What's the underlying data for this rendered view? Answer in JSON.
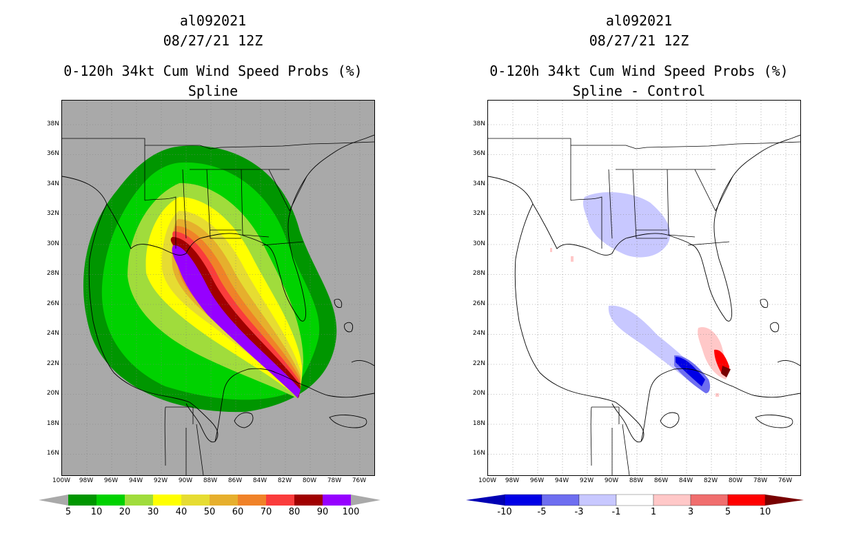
{
  "left_panel": {
    "title_line1": "al092021",
    "title_line2": "08/27/21 12Z",
    "title_line3": "0-120h 34kt Cum Wind Speed Probs (%)",
    "subtitle": "Spline",
    "background_color": "#a9a9a9",
    "colorbar": {
      "colors": [
        "#009600",
        "#00d200",
        "#a0dc3c",
        "#ffff00",
        "#e6dc32",
        "#e6af2d",
        "#f08228",
        "#fa3c3c",
        "#a00000",
        "#9600ff"
      ],
      "labels": [
        "5",
        "10",
        "20",
        "30",
        "40",
        "50",
        "60",
        "70",
        "80",
        "90",
        "100"
      ]
    }
  },
  "right_panel": {
    "title_line1": "al092021",
    "title_line2": "08/27/21 12Z",
    "title_line3": "0-120h 34kt Cum Wind Speed Probs (%)",
    "subtitle": "Spline - Control",
    "background_color": "#ffffff",
    "colorbar": {
      "low_cap": "#0000b4",
      "high_cap": "#780000",
      "colors": [
        "#0000e6",
        "#6e6ef0",
        "#c8c8ff",
        "#ffffff",
        "#ffc8c8",
        "#f06e6e",
        "#ff0000"
      ],
      "labels": [
        "-10",
        "-5",
        "-3",
        "-1",
        "1",
        "3",
        "5",
        "10"
      ]
    }
  },
  "axes": {
    "lat_labels": [
      "38N",
      "36N",
      "34N",
      "32N",
      "30N",
      "28N",
      "26N",
      "24N",
      "22N",
      "20N",
      "18N",
      "16N"
    ],
    "lon_labels": [
      "100W",
      "98W",
      "96W",
      "94W",
      "92W",
      "90W",
      "88W",
      "86W",
      "84W",
      "82W",
      "80W",
      "78W",
      "76W"
    ]
  }
}
